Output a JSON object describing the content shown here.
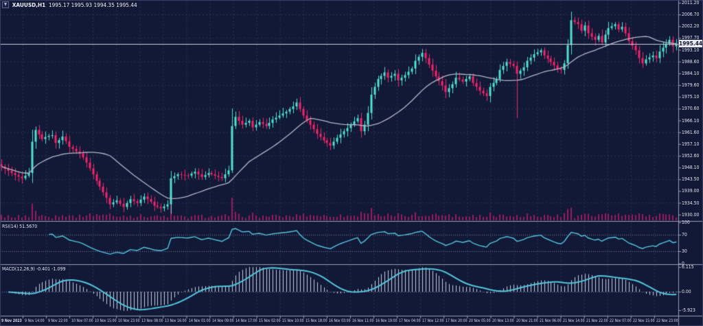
{
  "window": {
    "symbol_period": "XAUUSD,H1",
    "ohlc_text": "1995.17 1995.93 1994.35 1995.44",
    "collapse_glyph": "▼"
  },
  "colors": {
    "bg": "#121936",
    "grid": "#2b3558",
    "levels": "#79819f",
    "up": "#53e0d0",
    "down": "#f2256c",
    "volume": "#9c1a5e",
    "ma": "#b4b9c9",
    "indicator": "#54c7de",
    "hist": "#c9cfe0",
    "border": "#99a1b6",
    "price_line": "#cdd2e0",
    "axis_text": "#dfe3ee",
    "tag_bg": "#e7eaf2",
    "tag_text": "#10152e"
  },
  "chart_data": {
    "type": "candlestick",
    "title": "XAUUSD,H1 1995.17 1995.93 1994.35 1995.44",
    "symbol": "XAUUSD",
    "timeframe": "H1",
    "ohlc": {
      "open": 1995.17,
      "high": 1995.93,
      "low": 1994.35,
      "close": 1995.44
    },
    "last_price": 1995.44,
    "last_price_text": "1995.44",
    "open_first": 1949.4,
    "closes": [
      1948.5,
      1947.6,
      1946.8,
      1946.0,
      1945.2,
      1944.6,
      1944.0,
      1945.0,
      1946.0,
      1958.0,
      1962.5,
      1960.8,
      1959.0,
      1959.8,
      1960.2,
      1960.5,
      1957.5,
      1958.6,
      1960.0,
      1958.2,
      1956.0,
      1955.2,
      1954.3,
      1953.5,
      1952.0,
      1950.0,
      1947.8,
      1945.5,
      1943.0,
      1940.8,
      1938.6,
      1936.5,
      1934.0,
      1934.8,
      1935.5,
      1934.2,
      1933.0,
      1934.5,
      1936.0,
      1935.2,
      1934.5,
      1935.8,
      1937.0,
      1936.0,
      1935.0,
      1933.5,
      1933.0,
      1932.5,
      1933.2,
      1934.0,
      1944.0,
      1944.8,
      1945.5,
      1945.3,
      1945.1,
      1945.0,
      1945.8,
      1946.5,
      1945.5,
      1944.5,
      1945.2,
      1946.0,
      1945.5,
      1945.0,
      1944.5,
      1944.0,
      1945.5,
      1947.0,
      1964.0,
      1967.5,
      1966.0,
      1964.5,
      1965.2,
      1966.0,
      1963.5,
      1964.5,
      1965.5,
      1964.8,
      1964.0,
      1965.2,
      1966.5,
      1967.2,
      1968.0,
      1968.8,
      1969.5,
      1970.5,
      1971.5,
      1973.0,
      1970.5,
      1968.0,
      1966.2,
      1964.5,
      1962.8,
      1961.0,
      1959.8,
      1958.5,
      1957.5,
      1956.5,
      1958.0,
      1959.5,
      1960.8,
      1962.0,
      1963.2,
      1964.5,
      1965.8,
      1967.0,
      1962.0,
      1964.5,
      1969.0,
      1976.0,
      1979.0,
      1982.0,
      1983.2,
      1984.5,
      1982.5,
      1983.2,
      1984.0,
      1981.5,
      1982.5,
      1983.5,
      1984.8,
      1986.0,
      1989.0,
      1990.5,
      1992.0,
      1990.0,
      1987.5,
      1985.2,
      1983.0,
      1981.2,
      1979.5,
      1977.0,
      1978.5,
      1980.0,
      1982.5,
      1981.8,
      1981.0,
      1982.0,
      1983.0,
      1980.5,
      1979.0,
      1977.5,
      1976.5,
      1975.5,
      1979.0,
      1980.5,
      1982.0,
      1985.5,
      1987.0,
      1988.5,
      1987.8,
      1987.0,
      1984.0,
      1985.2,
      1986.5,
      1989.0,
      1990.2,
      1991.5,
      1992.2,
      1993.0,
      1991.0,
      1989.8,
      1988.5,
      1987.2,
      1986.0,
      1985.5,
      1988.0,
      1995.0,
      2004.5,
      2003.8,
      2003.0,
      2000.5,
      2002.5,
      1999.5,
      1998.2,
      1997.0,
      1998.5,
      1996.0,
      1999.0,
      2001.5,
      2002.2,
      2003.0,
      2001.0,
      2002.0,
      1999.5,
      1996.5,
      1994.8,
      1993.0,
      1990.0,
      1988.0,
      1989.5,
      1990.3,
      1991.0,
      1990.0,
      1992.5,
      1994.0,
      1995.5,
      1997.0,
      1994.5,
      1995.44
    ],
    "wick_overrides": [
      {
        "index": 10,
        "high": 1963.8
      },
      {
        "index": 36,
        "low": 1931.0
      },
      {
        "index": 47,
        "low": 1930.8
      },
      {
        "index": 68,
        "high": 1970.7,
        "low": 1946.0
      },
      {
        "index": 87,
        "high": 1974.5
      },
      {
        "index": 124,
        "high": 1993.5
      },
      {
        "index": 152,
        "low": 1967.0
      },
      {
        "index": 168,
        "high": 2007.8
      }
    ],
    "ma": {
      "type": "sma",
      "period": 24
    },
    "volume_note": "magenta volume bars along bottom of price panel (heights track candle ranges)",
    "price_axis": {
      "top_value": 2011.2,
      "tick_step": 4.5,
      "ticks": [
        "2011.20",
        "2006.70",
        "2002.20",
        "1997.70",
        "1993.10",
        "1988.60",
        "1984.10",
        "1979.60",
        "1975.10",
        "1970.60",
        "1966.10",
        "1961.60",
        "1957.10",
        "1952.60",
        "1948.10",
        "1943.50",
        "1939.00",
        "1934.50",
        "1930.00"
      ]
    },
    "time_ticks": [
      "9 Nov 2023",
      "9 Nov 14:00",
      "9 Nov 22:00",
      "10 Nov 07:00",
      "10 Nov 15:00",
      "10 Nov 23:00",
      "13 Nov 08:00",
      "13 Nov 16:00",
      "14 Nov 01:00",
      "14 Nov 09:00",
      "14 Nov 17:00",
      "15 Nov 02:00",
      "15 Nov 10:00",
      "15 Nov 18:00",
      "16 Nov 03:00",
      "16 Nov 11:00",
      "16 Nov 19:00",
      "17 Nov 04:00",
      "17 Nov 12:00",
      "17 Nov 20:00",
      "20 Nov 05:00",
      "20 Nov 13:00",
      "20 Nov 21:00",
      "21 Nov 06:00",
      "21 Nov 14:00",
      "21 Nov 22:00",
      "22 Nov 07:00",
      "22 Nov 15:00",
      "22 Nov 23:00"
    ],
    "indicators": {
      "rsi": {
        "label": "RSI(14) 51.5670",
        "period": 14,
        "value": 51.567,
        "levels": [
          100,
          70,
          30,
          0
        ]
      },
      "macd": {
        "label": "MACD(12,26,9) -0.401 -1.099",
        "fast": 12,
        "slow": 26,
        "signal": 9,
        "macd_value": -0.401,
        "signal_value": -1.099,
        "axis_ticks": [
          "6.115",
          "0.00",
          "-5.923"
        ]
      }
    }
  }
}
